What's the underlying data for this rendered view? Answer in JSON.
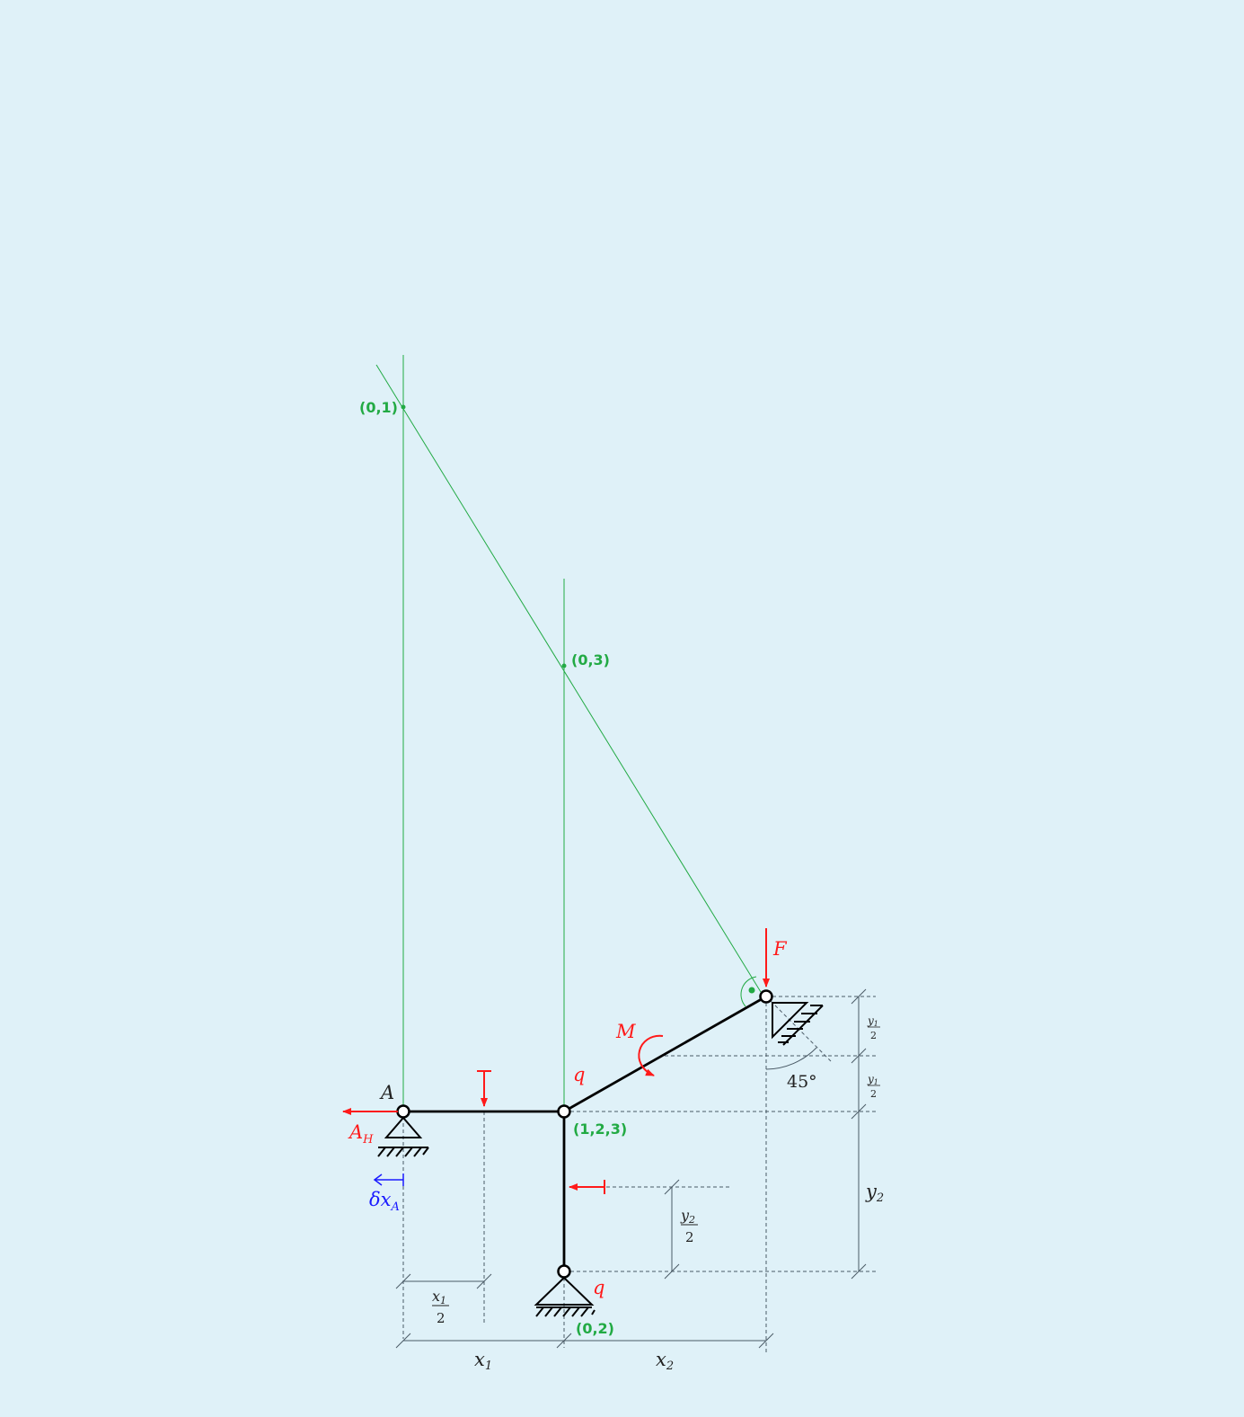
{
  "poles": {
    "p01": "(0,1)",
    "p03": "(0,3)",
    "p123": "(1,2,3)",
    "p02": "(0,2)"
  },
  "loads": {
    "F": "F",
    "M": "M",
    "q_upper": "q",
    "q_lower": "q",
    "A_H": "A",
    "A_H_sub": "H"
  },
  "points": {
    "A": "A"
  },
  "virtual_displacement": {
    "symbol": "δx",
    "sub": "A"
  },
  "dimensions": {
    "x1": "x",
    "x1_sub": "1",
    "x2": "x",
    "x2_sub": "2",
    "y2": "y",
    "y2_sub": "2",
    "x1_half_num": "x",
    "x1_half_num_sub": "1",
    "x1_half_den": "2",
    "y2_half_num": "y",
    "y2_half_num_sub": "2",
    "y2_half_den": "2",
    "y1_half_a_num": "y",
    "y1_half_a_num_sub": "1",
    "y1_half_a_den": "2",
    "y1_half_b_num": "y",
    "y1_half_b_num_sub": "1",
    "y1_half_b_den": "2",
    "angle": "45°"
  },
  "colors": {
    "structure": "#000000",
    "loads": "#ff1a1a",
    "poles": "#22aa44",
    "displacement": "#1a1aff",
    "dimension": "#4a5a66",
    "background": "#dff1f8"
  }
}
